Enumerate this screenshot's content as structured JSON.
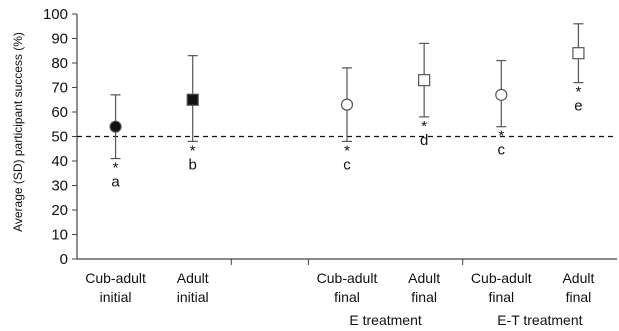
{
  "chart_data": {
    "type": "scatter",
    "ylabel": "Average (SD) participant success (%)",
    "xlabel": "",
    "title": "",
    "ylim": [
      0,
      100
    ],
    "yticks": [
      0,
      10,
      20,
      30,
      40,
      50,
      60,
      70,
      80,
      90,
      100
    ],
    "grid": false,
    "legend": "none",
    "reference_line": {
      "y": 50,
      "style": "dashed"
    },
    "categories": [
      {
        "line1": "Cub-adult",
        "line2": "initial",
        "slot": 0
      },
      {
        "line1": "Adult",
        "line2": "initial",
        "slot": 1
      },
      {
        "line1": "Cub-adult",
        "line2": "final",
        "slot": 3
      },
      {
        "line1": "Adult",
        "line2": "final",
        "slot": 4
      },
      {
        "line1": "Cub-adult",
        "line2": "final",
        "slot": 5
      },
      {
        "line1": "Adult",
        "line2": "final",
        "slot": 6
      }
    ],
    "groups": [
      {
        "label": "E treatment",
        "slots": [
          3,
          4
        ]
      },
      {
        "label": "E-T treatment",
        "slots": [
          5,
          6
        ]
      }
    ],
    "separators_after_slot": [
      1,
      2,
      4
    ],
    "points": [
      {
        "slot": 0,
        "mean": 54,
        "sd_low": 41,
        "sd_high": 67,
        "marker": "circle",
        "fill": "#111111",
        "star": "*",
        "letter": "a"
      },
      {
        "slot": 1,
        "mean": 65,
        "sd_low": 48,
        "sd_high": 83,
        "marker": "square",
        "fill": "#111111",
        "star": "*",
        "letter": "b"
      },
      {
        "slot": 3,
        "mean": 63,
        "sd_low": 48,
        "sd_high": 78,
        "marker": "circle",
        "fill": "#ffffff",
        "star": "*",
        "letter": "c"
      },
      {
        "slot": 4,
        "mean": 73,
        "sd_low": 58,
        "sd_high": 88,
        "marker": "square",
        "fill": "#ffffff",
        "star": "*",
        "letter": "d"
      },
      {
        "slot": 5,
        "mean": 67,
        "sd_low": 54,
        "sd_high": 81,
        "marker": "circle",
        "fill": "#ffffff",
        "star": "*",
        "letter": "c"
      },
      {
        "slot": 6,
        "mean": 84,
        "sd_low": 72,
        "sd_high": 96,
        "marker": "square",
        "fill": "#ffffff",
        "star": "*",
        "letter": "e"
      }
    ],
    "colors": {
      "axis": "#444444",
      "marker_stroke": "#555555",
      "text": "#111111"
    }
  }
}
